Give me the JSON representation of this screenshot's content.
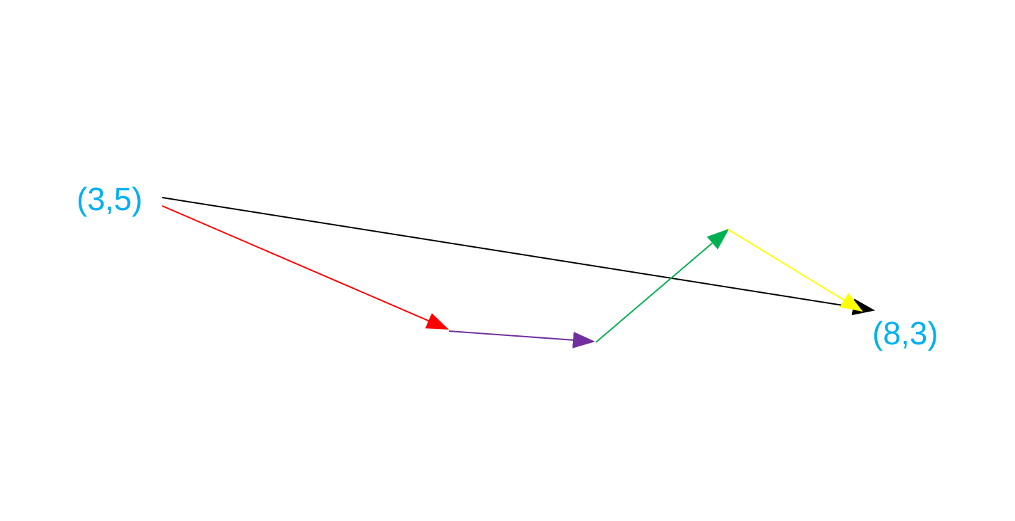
{
  "diagram": {
    "start_label": "(3,5)",
    "end_label": "(8,3)",
    "label_color": "#00B0F0",
    "vectors": [
      {
        "name": "red-vector",
        "color": "#FF0000"
      },
      {
        "name": "purple-vector",
        "color": "#7030A0"
      },
      {
        "name": "green-vector",
        "color": "#00B050"
      },
      {
        "name": "yellow-vector",
        "color": "#FFFF00"
      },
      {
        "name": "black-resultant-vector",
        "color": "#000000"
      }
    ]
  }
}
